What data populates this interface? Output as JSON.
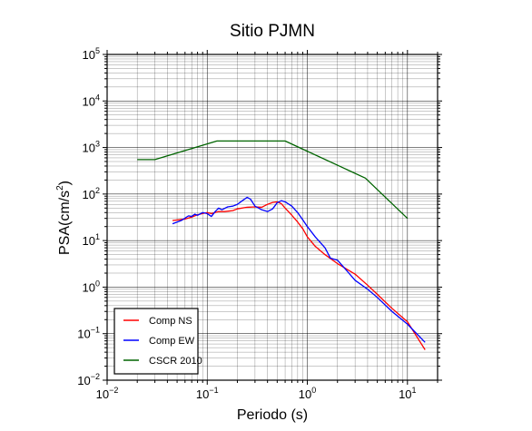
{
  "chart_data": {
    "type": "line",
    "title": "Sitio PJMN",
    "xlabel": "Periodo (s)",
    "ylabel_main": "PSA(cm/s",
    "ylabel_sup": "2",
    "ylabel_close": ")",
    "xscale": "log",
    "yscale": "log",
    "xlim": [
      0.01,
      20
    ],
    "ylim": [
      0.01,
      100000
    ],
    "grid": true,
    "legend_position": "bottom-left",
    "x_ticks": [
      {
        "value": 0.01,
        "base": "10",
        "exp": "−2"
      },
      {
        "value": 0.1,
        "base": "10",
        "exp": "−1"
      },
      {
        "value": 1,
        "base": "10",
        "exp": "0"
      },
      {
        "value": 10,
        "base": "10",
        "exp": "1"
      }
    ],
    "y_ticks": [
      {
        "value": 0.01,
        "base": "10",
        "exp": "−2"
      },
      {
        "value": 0.1,
        "base": "10",
        "exp": "−1"
      },
      {
        "value": 1,
        "base": "10",
        "exp": "0"
      },
      {
        "value": 10,
        "base": "10",
        "exp": "1"
      },
      {
        "value": 100,
        "base": "10",
        "exp": "2"
      },
      {
        "value": 1000,
        "base": "10",
        "exp": "3"
      },
      {
        "value": 10000,
        "base": "10",
        "exp": "4"
      },
      {
        "value": 100000,
        "base": "10",
        "exp": "5"
      }
    ],
    "series": [
      {
        "name": "Comp NS",
        "color": "#ff0000",
        "x": [
          0.045,
          0.06,
          0.07,
          0.08,
          0.09,
          0.1,
          0.11,
          0.12,
          0.13,
          0.15,
          0.18,
          0.2,
          0.25,
          0.3,
          0.35,
          0.4,
          0.45,
          0.5,
          0.55,
          0.6,
          0.7,
          0.8,
          0.9,
          1.0,
          1.2,
          1.5,
          2.0,
          2.5,
          3.0,
          4.0,
          5.0,
          7.0,
          10.0,
          15.0
        ],
        "y": [
          27,
          29,
          32,
          36,
          38,
          40,
          38,
          40,
          42,
          42,
          44,
          48,
          52,
          53,
          52,
          60,
          66,
          68,
          62,
          50,
          35,
          25,
          18,
          12,
          7.5,
          5,
          3.2,
          2.4,
          1.9,
          1.1,
          0.7,
          0.35,
          0.18,
          0.045
        ]
      },
      {
        "name": "Comp EW",
        "color": "#0000ff",
        "x": [
          0.045,
          0.055,
          0.065,
          0.07,
          0.075,
          0.08,
          0.09,
          0.1,
          0.11,
          0.12,
          0.13,
          0.14,
          0.16,
          0.18,
          0.2,
          0.22,
          0.25,
          0.27,
          0.3,
          0.35,
          0.4,
          0.45,
          0.5,
          0.55,
          0.6,
          0.7,
          0.8,
          0.9,
          1.0,
          1.2,
          1.5,
          1.7,
          2.0,
          2.5,
          3.0,
          4.0,
          5.0,
          7.0,
          10.0,
          15.0
        ],
        "y": [
          23,
          27,
          34,
          33,
          37,
          35,
          40,
          38,
          33,
          42,
          50,
          46,
          53,
          55,
          60,
          70,
          85,
          78,
          55,
          46,
          42,
          48,
          65,
          72,
          68,
          55,
          40,
          28,
          20,
          12,
          7,
          4.2,
          3.8,
          2.2,
          1.4,
          0.9,
          0.6,
          0.3,
          0.16,
          0.065
        ]
      },
      {
        "name": "CSCR 2010",
        "color": "#006400",
        "x": [
          0.02,
          0.03,
          0.125,
          0.6,
          3.8,
          10.0
        ],
        "y": [
          550,
          550,
          1380,
          1380,
          220,
          30
        ]
      }
    ]
  }
}
